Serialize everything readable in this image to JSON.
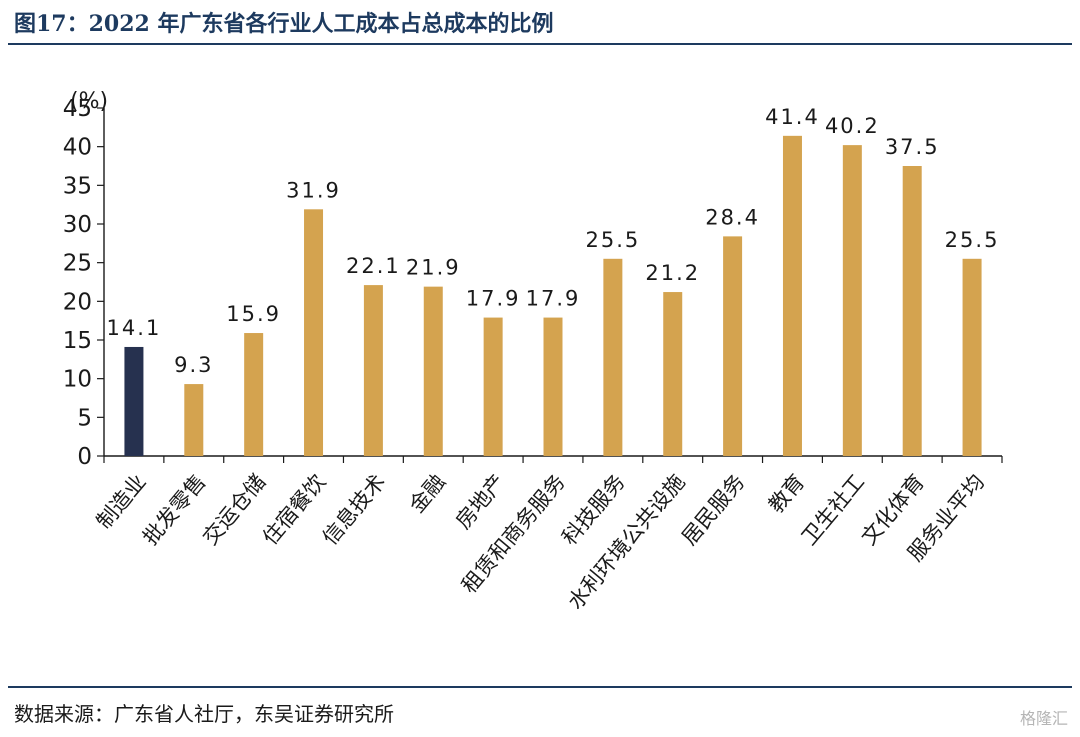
{
  "title": "图17：2022 年广东省各行业人工成本占总成本的比例",
  "source": "数据来源：广东省人社厅，东吴证券研究所",
  "watermark": "格隆汇",
  "colors": {
    "highlight": "#26314f",
    "bar": "#d4a34f",
    "title": "#1d3a5f"
  },
  "chart_data": {
    "type": "bar",
    "title": "",
    "xlabel": "",
    "ylabel": "(%)",
    "ylim": [
      0,
      45
    ],
    "yticks": [
      0,
      5,
      10,
      15,
      20,
      25,
      30,
      35,
      40,
      45
    ],
    "categories": [
      "制造业",
      "批发零售",
      "交运仓储",
      "住宿餐饮",
      "信息技术",
      "金融",
      "房地产",
      "租赁和商务服务",
      "科技服务",
      "水利环境公共设施",
      "居民服务",
      "教育",
      "卫生社工",
      "文化体育",
      "服务业平均"
    ],
    "values": [
      14.1,
      9.3,
      15.9,
      31.9,
      22.1,
      21.9,
      17.9,
      17.9,
      25.5,
      21.2,
      28.4,
      41.4,
      40.2,
      37.5,
      25.5
    ],
    "value_labels": [
      "14.1",
      "9.3",
      "15.9",
      "31.9",
      "22.1",
      "21.9",
      "17.9",
      "17.9",
      "25.5",
      "21.2",
      "28.4",
      "41.4",
      "40.2",
      "37.5",
      "25.5"
    ],
    "highlight_index": 0,
    "grid": false,
    "legend": "none"
  }
}
